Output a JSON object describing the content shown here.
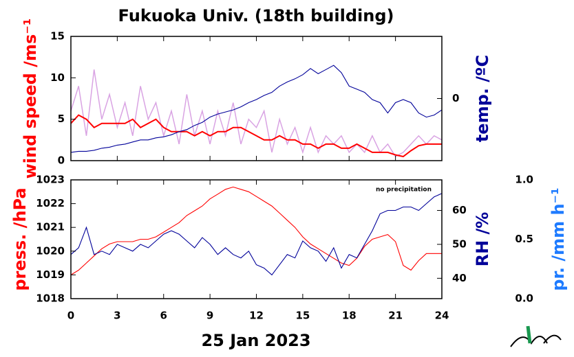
{
  "chart_data": [
    {
      "type": "line",
      "title": "Fukuoka Univ. (18th building)",
      "ylabel": "wind speed /ms⁻¹",
      "y2label": "temp. /ºC",
      "x": [
        0,
        0.5,
        1,
        1.5,
        2,
        2.5,
        3,
        3.5,
        4,
        4.5,
        5,
        5.5,
        6,
        6.5,
        7,
        7.5,
        8,
        8.5,
        9,
        9.5,
        10,
        10.5,
        11,
        11.5,
        12,
        12.5,
        13,
        13.5,
        14,
        14.5,
        15,
        15.5,
        16,
        16.5,
        17,
        17.5,
        18,
        18.5,
        19,
        19.5,
        20,
        20.5,
        21,
        21.5,
        22,
        22.5,
        23,
        23.5,
        24
      ],
      "xlim": [
        0,
        24
      ],
      "xticks": [
        0,
        3,
        6,
        9,
        12,
        15,
        18,
        21,
        24
      ],
      "ylim": [
        0,
        15
      ],
      "yticks": [
        0,
        5,
        10,
        15
      ],
      "y2lim": [
        -6,
        6
      ],
      "y2ticks": [
        0
      ],
      "series": [
        {
          "color": "#d9a3e3",
          "values": [
            6,
            9,
            3,
            11,
            5,
            8,
            4,
            7,
            3,
            9,
            5,
            7,
            3,
            6,
            2,
            8,
            3,
            6,
            2,
            6,
            3,
            7,
            2,
            5,
            4,
            6,
            1,
            5,
            2,
            4,
            1,
            4,
            1,
            3,
            2,
            3,
            1,
            2,
            1,
            3,
            1,
            2,
            0.5,
            1,
            2,
            3,
            2,
            3,
            2.5
          ]
        },
        {
          "color": "#ff0000",
          "values": [
            4.5,
            5.5,
            5,
            4,
            4.5,
            4.5,
            4.5,
            4.5,
            5,
            4,
            4.5,
            5,
            4,
            3.5,
            3.5,
            3.5,
            3,
            3.5,
            3,
            3.5,
            3.5,
            4,
            4,
            3.5,
            3,
            2.5,
            2.5,
            3,
            2.5,
            2.5,
            2,
            2,
            1.5,
            2,
            2,
            1.5,
            1.5,
            2,
            1.5,
            1,
            1,
            1,
            0.7,
            0.5,
            1.2,
            1.8,
            2,
            2,
            2
          ]
        },
        {
          "color": "#000099",
          "axis": "y2",
          "values": [
            -5.2,
            -5.1,
            -5.1,
            -5.0,
            -4.8,
            -4.7,
            -4.5,
            -4.4,
            -4.2,
            -4.0,
            -4.0,
            -3.8,
            -3.7,
            -3.5,
            -3.2,
            -3.0,
            -2.6,
            -2.3,
            -1.8,
            -1.5,
            -1.3,
            -1.1,
            -0.8,
            -0.4,
            -0.1,
            0.3,
            0.6,
            1.2,
            1.6,
            1.9,
            2.3,
            2.9,
            2.4,
            2.8,
            3.2,
            2.5,
            1.2,
            0.9,
            0.6,
            -0.1,
            -0.4,
            -1.4,
            -0.4,
            -0.1,
            -0.4,
            -1.4,
            -1.8,
            -1.6,
            -1.1
          ]
        }
      ]
    },
    {
      "type": "line",
      "xlabel": "25 Jan 2023",
      "annotation": "no precipitation",
      "ylabel": "press. /hPa",
      "y2label": "RH /%",
      "y3label": "pr. /mm h⁻¹",
      "x": [
        0,
        0.5,
        1,
        1.5,
        2,
        2.5,
        3,
        3.5,
        4,
        4.5,
        5,
        5.5,
        6,
        6.5,
        7,
        7.5,
        8,
        8.5,
        9,
        9.5,
        10,
        10.5,
        11,
        11.5,
        12,
        12.5,
        13,
        13.5,
        14,
        14.5,
        15,
        15.5,
        16,
        16.5,
        17,
        17.5,
        18,
        18.5,
        19,
        19.5,
        20,
        20.5,
        21,
        21.5,
        22,
        22.5,
        23,
        23.5,
        24
      ],
      "xlim": [
        0,
        24
      ],
      "xticks": [
        0,
        3,
        6,
        9,
        12,
        15,
        18,
        21,
        24
      ],
      "ylim": [
        1018,
        1023
      ],
      "yticks": [
        1018,
        1019,
        1020,
        1021,
        1022,
        1023
      ],
      "y2lim": [
        34,
        69
      ],
      "y2ticks": [
        40,
        50,
        60
      ],
      "y3lim": [
        0,
        1
      ],
      "y3ticks": [
        {
          "value": 0,
          "label": "0.0"
        },
        {
          "value": 0.5,
          "label": "0.5"
        },
        {
          "value": 1,
          "label": "1.0"
        }
      ],
      "series": [
        {
          "color": "#ff0000",
          "values": [
            1019.0,
            1019.2,
            1019.5,
            1019.8,
            1020.1,
            1020.3,
            1020.4,
            1020.4,
            1020.4,
            1020.5,
            1020.5,
            1020.6,
            1020.8,
            1021.0,
            1021.2,
            1021.5,
            1021.7,
            1021.9,
            1022.2,
            1022.4,
            1022.6,
            1022.7,
            1022.6,
            1022.5,
            1022.3,
            1022.1,
            1021.9,
            1021.6,
            1021.3,
            1021.0,
            1020.6,
            1020.3,
            1020.1,
            1019.9,
            1019.7,
            1019.5,
            1019.4,
            1019.7,
            1020.2,
            1020.5,
            1020.6,
            1020.7,
            1020.4,
            1019.4,
            1019.2,
            1019.6,
            1019.9,
            1019.9,
            1019.9
          ]
        },
        {
          "color": "#000099",
          "axis": "y2",
          "values": [
            47,
            49,
            55,
            47,
            48,
            47,
            50,
            49,
            48,
            50,
            49,
            51,
            53,
            54,
            53,
            51,
            49,
            52,
            50,
            47,
            49,
            47,
            46,
            48,
            44,
            43,
            41,
            44,
            47,
            46,
            51,
            49,
            48,
            45,
            49,
            43,
            47,
            46,
            50,
            54,
            59,
            60,
            60,
            61,
            61,
            60,
            62,
            64,
            65
          ]
        }
      ]
    }
  ]
}
